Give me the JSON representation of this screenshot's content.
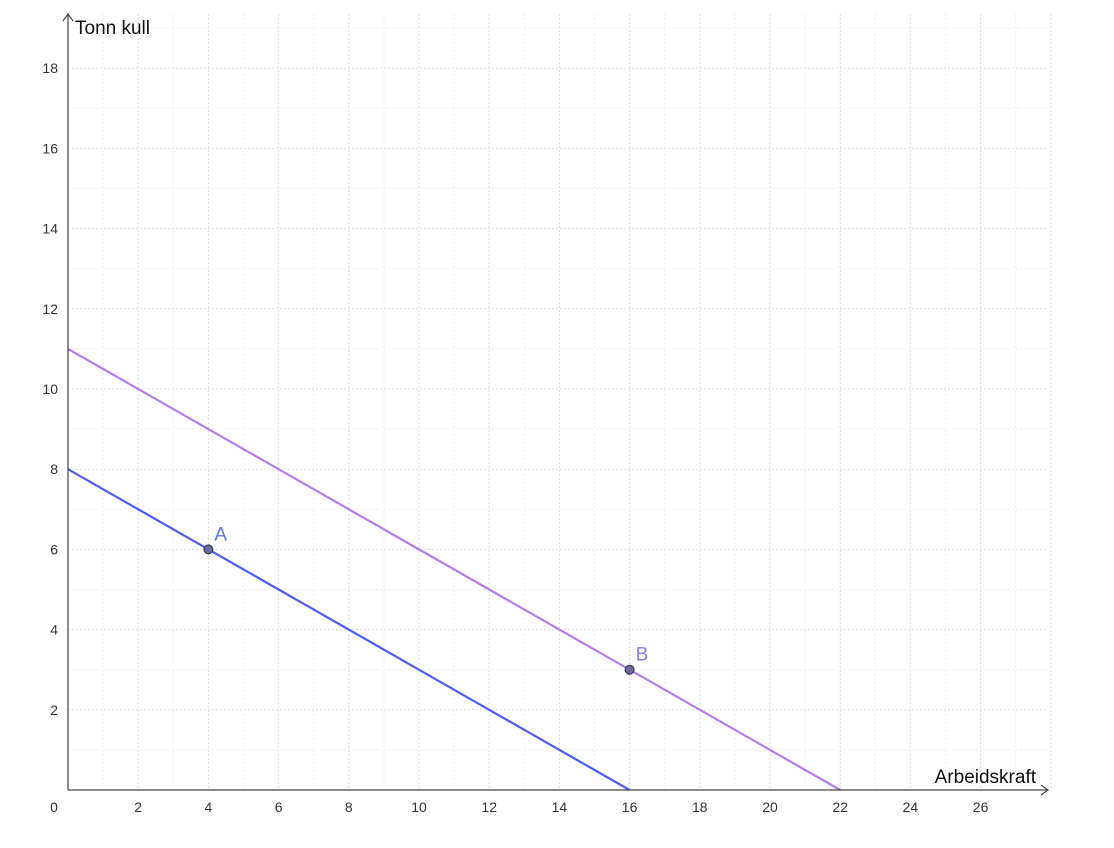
{
  "chart_data": {
    "type": "line",
    "xlabel": "Arbeidskraft",
    "ylabel": "Tonn kull",
    "xlim": [
      0,
      28
    ],
    "ylim": [
      0,
      19
    ],
    "xticks": [
      0,
      2,
      4,
      6,
      8,
      10,
      12,
      14,
      16,
      18,
      20,
      22,
      24,
      26
    ],
    "yticks": [
      2,
      4,
      6,
      8,
      10,
      12,
      14,
      16,
      18
    ],
    "grid": true,
    "series": [
      {
        "x": [
          0,
          16
        ],
        "y": [
          8,
          0
        ],
        "color": "#4b5ef0"
      },
      {
        "x": [
          0,
          22
        ],
        "y": [
          11,
          0
        ],
        "color": "#b57cf0"
      }
    ],
    "points": [
      {
        "label": "A",
        "x": 4,
        "y": 6
      },
      {
        "label": "B",
        "x": 16,
        "y": 3
      }
    ]
  }
}
